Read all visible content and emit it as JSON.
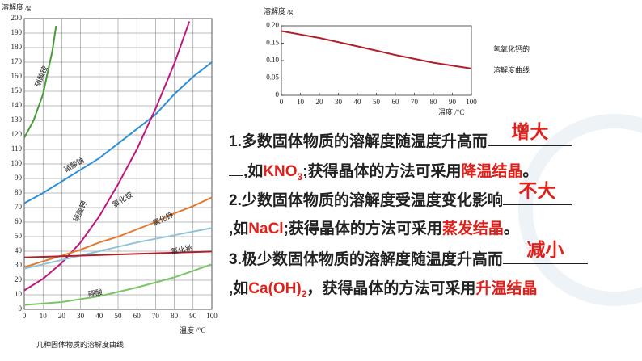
{
  "chart_data": [
    {
      "type": "line",
      "ylabel": "溶解度 /g",
      "xlabel": "温度 /°C",
      "caption": "几种固体物质的溶解度曲线",
      "xlim": [
        0,
        100
      ],
      "xticks": [
        0,
        10,
        20,
        30,
        40,
        50,
        60,
        70,
        80,
        90,
        100
      ],
      "ylim": [
        0,
        200
      ],
      "yticks": [
        0,
        10,
        20,
        30,
        40,
        50,
        60,
        70,
        80,
        90,
        100,
        110,
        120,
        130,
        140,
        150,
        160,
        170,
        180,
        190,
        200
      ],
      "grid": true,
      "series": [
        {
          "name": "硝酸铵",
          "color": "#4a9a3a",
          "x": [
            0,
            5,
            10,
            15,
            17
          ],
          "values": [
            118,
            130,
            148,
            178,
            195
          ]
        },
        {
          "name": "硝酸钠",
          "color": "#2e8fd6",
          "x": [
            0,
            10,
            20,
            30,
            40,
            50,
            60,
            70,
            80,
            90,
            100
          ],
          "values": [
            73,
            80,
            88,
            96,
            104,
            114,
            124,
            134,
            148,
            160,
            170
          ]
        },
        {
          "name": "硝酸钾",
          "color": "#c0177e",
          "x": [
            0,
            10,
            20,
            30,
            40,
            50,
            60,
            70,
            80,
            88
          ],
          "values": [
            13,
            21,
            32,
            46,
            64,
            86,
            110,
            138,
            169,
            198
          ]
        },
        {
          "name": "氯化铵",
          "color": "#e07a30",
          "x": [
            0,
            10,
            20,
            30,
            40,
            50,
            60,
            70,
            80,
            90,
            100
          ],
          "values": [
            29,
            33,
            37,
            41,
            46,
            50,
            55,
            60,
            66,
            71,
            77
          ]
        },
        {
          "name": "氯化钾",
          "color": "#8fc4d8",
          "x": [
            0,
            20,
            40,
            60,
            80,
            100
          ],
          "values": [
            28,
            34,
            40,
            46,
            51,
            56
          ]
        },
        {
          "name": "氯化钠",
          "color": "#b0202a",
          "x": [
            0,
            100
          ],
          "values": [
            35.7,
            39.8
          ]
        },
        {
          "name": "硼酸",
          "color": "#7cc46a",
          "x": [
            0,
            20,
            40,
            60,
            80,
            100
          ],
          "values": [
            3,
            5,
            9,
            15,
            22,
            31
          ]
        }
      ]
    },
    {
      "type": "line",
      "ylabel": "溶解度 /g",
      "xlabel": "温度 /°C",
      "annotation": [
        "氢氧化钙的",
        "溶解度曲线"
      ],
      "xlim": [
        0,
        100
      ],
      "xticks": [
        0,
        10,
        20,
        30,
        40,
        50,
        60,
        70,
        80,
        90,
        100
      ],
      "ylim": [
        0,
        0.2
      ],
      "yticks": [
        0,
        0.05,
        {
          "value": 0.1,
          "label": "0.10"
        },
        0.15,
        {
          "value": 0.2,
          "label": "0.20"
        }
      ],
      "grid": false,
      "series": [
        {
          "name": "氢氧化钙",
          "color": "#b0202a",
          "x": [
            0,
            20,
            40,
            60,
            80,
            100
          ],
          "values": [
            0.185,
            0.165,
            0.141,
            0.116,
            0.094,
            0.077
          ]
        }
      ]
    }
  ],
  "items": [
    {
      "text": "1.多数固体物质的溶解度随温度升高而",
      "answer": "增大",
      "example_pre": ",如",
      "formula": "KNO",
      "formula_sub": "3",
      "method_pre": ";获得晶体的方法可采用",
      "method": "降温结晶",
      "end": "。"
    },
    {
      "text": "2.少数固体物质的溶解度受温度变化影响",
      "answer": "不大",
      "example_pre": ",如",
      "formula": "NaCl",
      "method_pre": ";获得晶体的方法可采用",
      "method": "蒸发结晶",
      "end": "。"
    },
    {
      "text": "3.极少数固体物质的溶解度随温度升高而",
      "answer": "减小",
      "example_pre": ",如",
      "formula": "Ca(OH)",
      "formula_sub": "2",
      "method_pre": "，获得晶体的方法可采用",
      "method": "升温结晶"
    }
  ]
}
